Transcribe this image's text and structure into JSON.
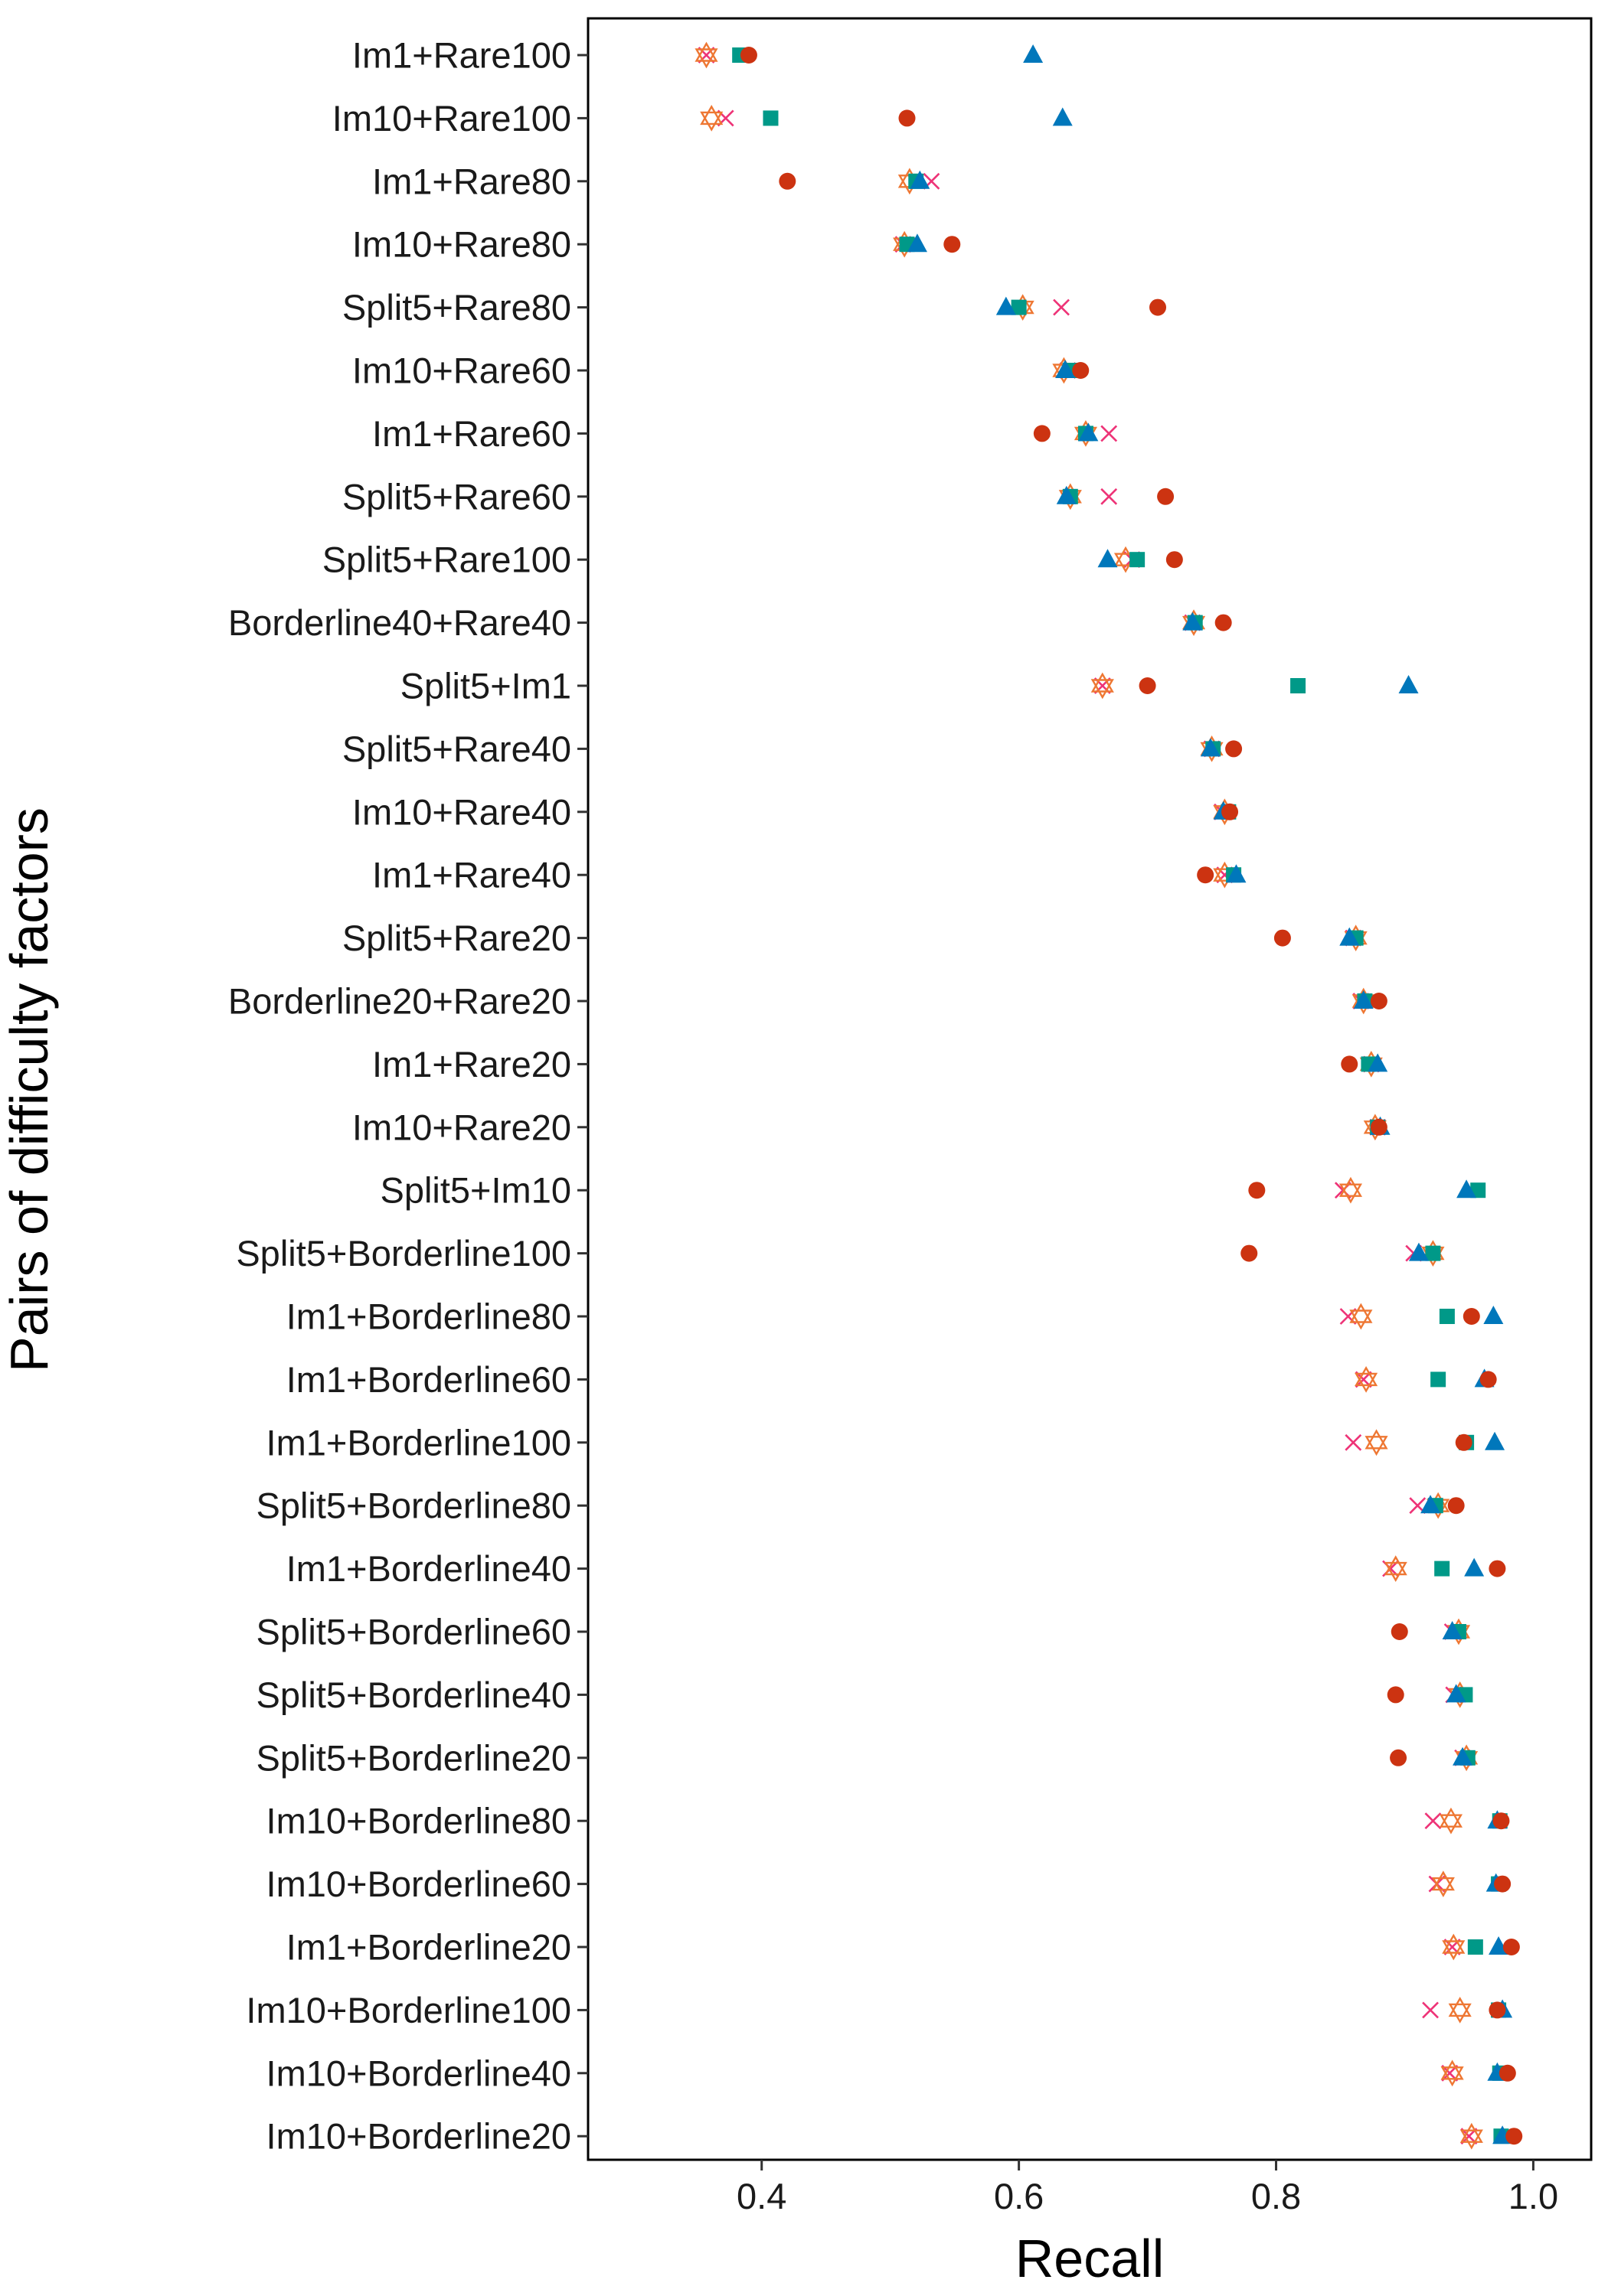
{
  "chart_data": {
    "type": "scatter",
    "title": "",
    "xlabel": "Recall",
    "ylabel": "Pairs of difficulty factors",
    "xlim": [
      0.265,
      1.045
    ],
    "xticks": [
      0.4,
      0.6,
      0.8,
      1.0
    ],
    "xtick_labels": [
      "0.4",
      "0.6",
      "0.8",
      "1.0"
    ],
    "grid": false,
    "legend": "none",
    "categories": [
      "Im1+Rare100",
      "Im10+Rare100",
      "Im1+Rare80",
      "Im10+Rare80",
      "Split5+Rare80",
      "Im10+Rare60",
      "Im1+Rare60",
      "Split5+Rare60",
      "Split5+Rare100",
      "Borderline40+Rare40",
      "Split5+Im1",
      "Split5+Rare40",
      "Im10+Rare40",
      "Im1+Rare40",
      "Split5+Rare20",
      "Borderline20+Rare20",
      "Im1+Rare20",
      "Im10+Rare20",
      "Split5+Im10",
      "Split5+Borderline100",
      "Im1+Borderline80",
      "Im1+Borderline60",
      "Im1+Borderline100",
      "Split5+Borderline80",
      "Im1+Borderline40",
      "Split5+Borderline60",
      "Split5+Borderline40",
      "Split5+Borderline20",
      "Im10+Borderline80",
      "Im10+Borderline60",
      "Im1+Borderline20",
      "Im10+Borderline100",
      "Im10+Borderline40",
      "Im10+Borderline20"
    ],
    "series": [
      {
        "marker": "circle",
        "color": "#cc3311",
        "values": [
          0.39,
          0.513,
          0.42,
          0.548,
          0.708,
          0.648,
          0.618,
          0.714,
          0.721,
          0.759,
          0.7,
          0.767,
          0.764,
          0.745,
          0.805,
          0.88,
          0.857,
          0.88,
          0.785,
          0.779,
          0.952,
          0.965,
          0.946,
          0.94,
          0.972,
          0.896,
          0.893,
          0.895,
          0.975,
          0.976,
          0.983,
          0.972,
          0.98,
          0.985
        ]
      },
      {
        "marker": "triangle",
        "color": "#0077bb",
        "values": [
          0.611,
          0.634,
          0.523,
          0.521,
          0.59,
          0.636,
          0.654,
          0.637,
          0.669,
          0.735,
          0.903,
          0.749,
          0.759,
          0.769,
          0.857,
          0.868,
          0.879,
          0.881,
          0.948,
          0.911,
          0.969,
          0.962,
          0.97,
          0.92,
          0.954,
          0.937,
          0.94,
          0.945,
          0.972,
          0.971,
          0.973,
          0.976,
          0.972,
          0.976
        ]
      },
      {
        "marker": "square",
        "color": "#009988",
        "values": [
          0.383,
          0.407,
          0.52,
          0.513,
          0.6,
          0.64,
          0.652,
          0.64,
          0.692,
          0.737,
          0.817,
          0.751,
          0.763,
          0.767,
          0.862,
          0.869,
          0.872,
          0.879,
          0.957,
          0.922,
          0.933,
          0.926,
          0.948,
          0.924,
          0.929,
          0.942,
          0.947,
          0.949,
          0.974,
          0.973,
          0.955,
          0.973,
          0.974,
          0.975
        ]
      },
      {
        "marker": "cross",
        "color": "#ee3377",
        "values": [
          0.357,
          0.372,
          0.532,
          0.51,
          0.633,
          0.638,
          0.67,
          0.67,
          0.688,
          0.735,
          0.665,
          0.75,
          0.758,
          0.76,
          0.86,
          0.866,
          0.874,
          0.879,
          0.852,
          0.907,
          0.856,
          0.868,
          0.86,
          0.91,
          0.889,
          0.937,
          0.938,
          0.945,
          0.922,
          0.925,
          0.937,
          0.92,
          0.935,
          0.95
        ]
      },
      {
        "marker": "hexagram",
        "color": "#ee7733",
        "values": [
          0.357,
          0.361,
          0.515,
          0.511,
          0.603,
          0.635,
          0.652,
          0.64,
          0.683,
          0.736,
          0.665,
          0.75,
          0.76,
          0.76,
          0.862,
          0.868,
          0.874,
          0.877,
          0.858,
          0.922,
          0.866,
          0.87,
          0.878,
          0.926,
          0.893,
          0.942,
          0.943,
          0.948,
          0.936,
          0.93,
          0.938,
          0.943,
          0.937,
          0.952
        ]
      }
    ]
  }
}
